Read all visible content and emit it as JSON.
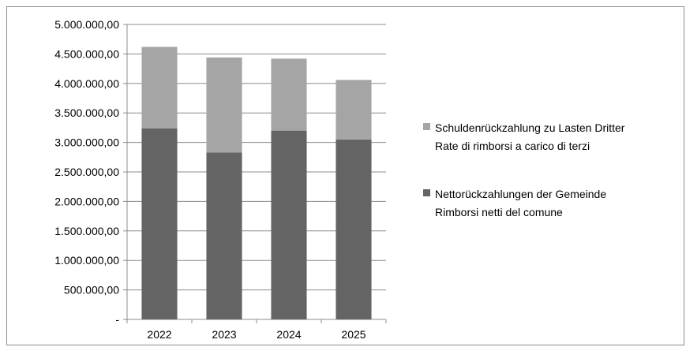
{
  "chart_data": {
    "type": "bar",
    "stacked": true,
    "title": "",
    "xlabel": "",
    "ylabel": "",
    "categories": [
      "2022",
      "2023",
      "2024",
      "2025"
    ],
    "series": [
      {
        "name_lines": [
          "Nettorückzahlungen der Gemeinde",
          "Rimborsi netti del comune"
        ],
        "color": "#646464",
        "values": [
          3240000,
          2830000,
          3200000,
          3050000
        ]
      },
      {
        "name_lines": [
          "Schuldenrückzahlung zu Lasten Dritter",
          "Rate di rimborsi a carico di terzi"
        ],
        "color": "#a5a5a5",
        "values": [
          1380000,
          1610000,
          1220000,
          1010000
        ]
      }
    ],
    "ylim": [
      0,
      5000000
    ],
    "ytick_step": 500000,
    "ytick_labels": [
      "-",
      "500.000,00",
      "1.000.000,00",
      "1.500.000,00",
      "2.000.000,00",
      "2.500.000,00",
      "3.000.000,00",
      "3.500.000,00",
      "4.000.000,00",
      "4.500.000,00",
      "5.000.000,00"
    ],
    "grid": true,
    "legend_position": "right"
  }
}
